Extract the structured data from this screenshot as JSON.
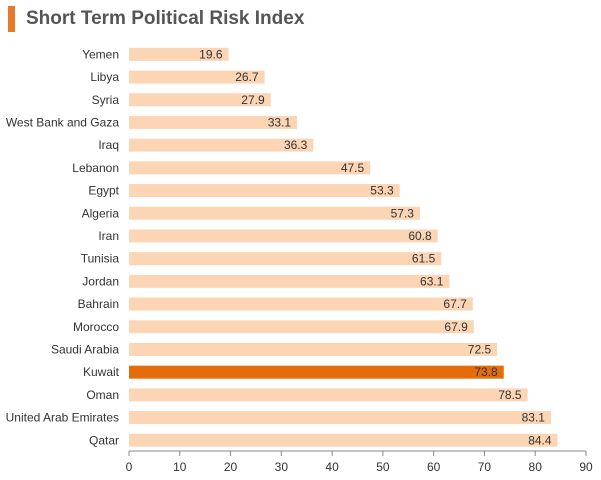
{
  "chart_data": {
    "type": "bar",
    "orientation": "horizontal",
    "title": "Short Term Political Risk Index",
    "categories": [
      "Yemen",
      "Libya",
      "Syria",
      "West Bank and Gaza",
      "Iraq",
      "Lebanon",
      "Egypt",
      "Algeria",
      "Iran",
      "Tunisia",
      "Jordan",
      "Bahrain",
      "Morocco",
      "Saudi Arabia",
      "Kuwait",
      "Oman",
      "United Arab Emirates",
      "Qatar"
    ],
    "values": [
      19.6,
      26.7,
      27.9,
      33.1,
      36.3,
      47.5,
      53.3,
      57.3,
      60.8,
      61.5,
      63.1,
      67.7,
      67.9,
      72.5,
      73.8,
      78.5,
      83.1,
      84.4
    ],
    "value_labels": [
      "19.6",
      "26.7",
      "27.9",
      "33.1",
      "36.3",
      "47.5",
      "53.3",
      "57.3",
      "60.8",
      "61.5",
      "63.1",
      "67.7",
      "67.9",
      "72.5",
      "73.8",
      "78.5",
      "83.1",
      "84.4"
    ],
    "highlight": "Kuwait",
    "xlim": [
      0,
      90
    ],
    "xticks": [
      0,
      10,
      20,
      30,
      40,
      50,
      60,
      70,
      80,
      90
    ],
    "xtick_labels": [
      "0",
      "10",
      "20",
      "30",
      "40",
      "50",
      "60",
      "70",
      "80",
      "90"
    ],
    "xlabel": "",
    "ylabel": "",
    "grid": false,
    "legend": "none",
    "colors": {
      "bar": "#fcd5b5",
      "highlight": "#e46c0a",
      "title_accent": "#e8792a",
      "axis": "#888888"
    }
  }
}
